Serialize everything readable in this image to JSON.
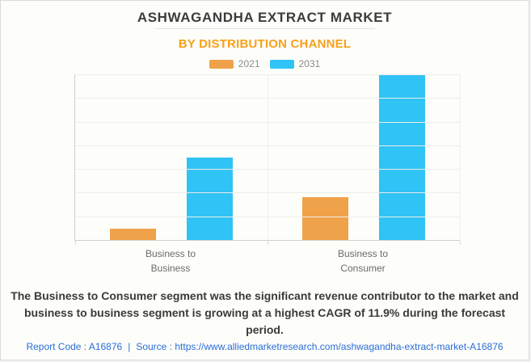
{
  "header": {
    "title": "ASHWAGANDHA EXTRACT MARKET",
    "subtitle": "BY DISTRIBUTION CHANNEL"
  },
  "chart_data": {
    "type": "bar",
    "title": "ASHWAGANDHA EXTRACT MARKET",
    "subtitle": "BY DISTRIBUTION CHANNEL",
    "categories": [
      "Business to Business",
      "Business to Consumer"
    ],
    "series": [
      {
        "name": "2021",
        "color": "#F0A24A",
        "values": [
          0.07,
          0.26
        ]
      },
      {
        "name": "2031",
        "color": "#30C3F5",
        "values": [
          0.5,
          1.0
        ]
      }
    ],
    "xlabel": "",
    "ylabel": "",
    "ylim": [
      0,
      1
    ],
    "value_note": "no y-axis tick labels shown; values are relative bar heights where 2031 Business-to-Consumer = 1.0",
    "grid": {
      "horizontal_intervals": 7,
      "vertical_separators": [
        "50%",
        "100%"
      ]
    },
    "legend_position": "top"
  },
  "annotation": {
    "text": "The Business to Consumer segment was the significant revenue contributor to the market and business to business segment is growing at a highest CAGR of 11.9% during the forecast period."
  },
  "footer": {
    "report_code": "Report Code : A16876",
    "separator": "|",
    "source_label": "Source :",
    "source_url": "https://www.alliedmarketresearch.com/ashwagandha-extract-market-A16876"
  },
  "colors": {
    "accent_orange": "#F7A11A",
    "series_2021": "#F0A24A",
    "series_2031": "#30C3F5",
    "footer_link": "#2A6DD9",
    "title_text": "#3C3C3C"
  }
}
